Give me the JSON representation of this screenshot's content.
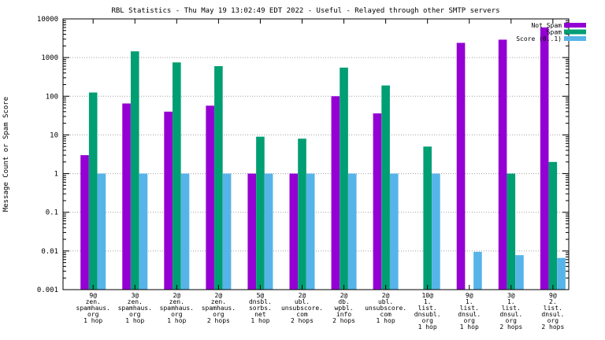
{
  "chart_data": {
    "type": "bar",
    "title": "RBL Statistics - Thu May 19 13:02:49 EDT 2022 - Useful - Relayed through other SMTP servers",
    "xlabel": "",
    "ylabel": "Message Count or Spam Score",
    "yscale": "log",
    "ylim": [
      0.001,
      10000
    ],
    "yticks": [
      "0.001",
      "0.01",
      "0.1",
      "1",
      "10",
      "100",
      "1000",
      "10000"
    ],
    "legend_position": "top-right",
    "categories": [
      [
        "9@",
        "zen.",
        "spamhaus.",
        "org",
        "1 hop"
      ],
      [
        "3@",
        "zen.",
        "spamhaus.",
        "org",
        "1 hop"
      ],
      [
        "2@",
        "zen.",
        "spamhaus.",
        "org",
        "1 hop"
      ],
      [
        "2@",
        "zen.",
        "spamhaus.",
        "org",
        "2 hops"
      ],
      [
        "5@",
        "dnsbl.",
        "sorbs.",
        "net",
        "1 hop"
      ],
      [
        "2@",
        "ubl.",
        "unsubscore.",
        "com",
        "2 hops"
      ],
      [
        "2@",
        "db.",
        "wpbl.",
        "info",
        "2 hops"
      ],
      [
        "2@",
        "ubl.",
        "unsubscore.",
        "com",
        "1 hop"
      ],
      [
        "10@",
        "1.",
        "list.",
        "dnsubl.",
        "org",
        "1 hop"
      ],
      [
        "9@",
        "1.",
        "list.",
        "dnsul.",
        "org",
        "1 hop"
      ],
      [
        "3@",
        "1.",
        "list.",
        "dnsul.",
        "org",
        "2 hops"
      ],
      [
        "9@",
        "2.",
        "list.",
        "dnsul.",
        "org",
        "2 hops"
      ]
    ],
    "series": [
      {
        "name": "Not Spam",
        "color": "#9400d3",
        "values": [
          3,
          65,
          40,
          57,
          1,
          1,
          100,
          36,
          null,
          2400,
          2900,
          6000
        ]
      },
      {
        "name": "Spam",
        "color": "#009e73",
        "values": [
          125,
          1450,
          750,
          600,
          9,
          8,
          550,
          190,
          5,
          null,
          1,
          2
        ]
      },
      {
        "name": "Score (0..1)",
        "color": "#56b4e9",
        "values": [
          1,
          1,
          1,
          1,
          1,
          1,
          1,
          1,
          1,
          0.0095,
          0.0078,
          0.0066
        ]
      }
    ]
  }
}
